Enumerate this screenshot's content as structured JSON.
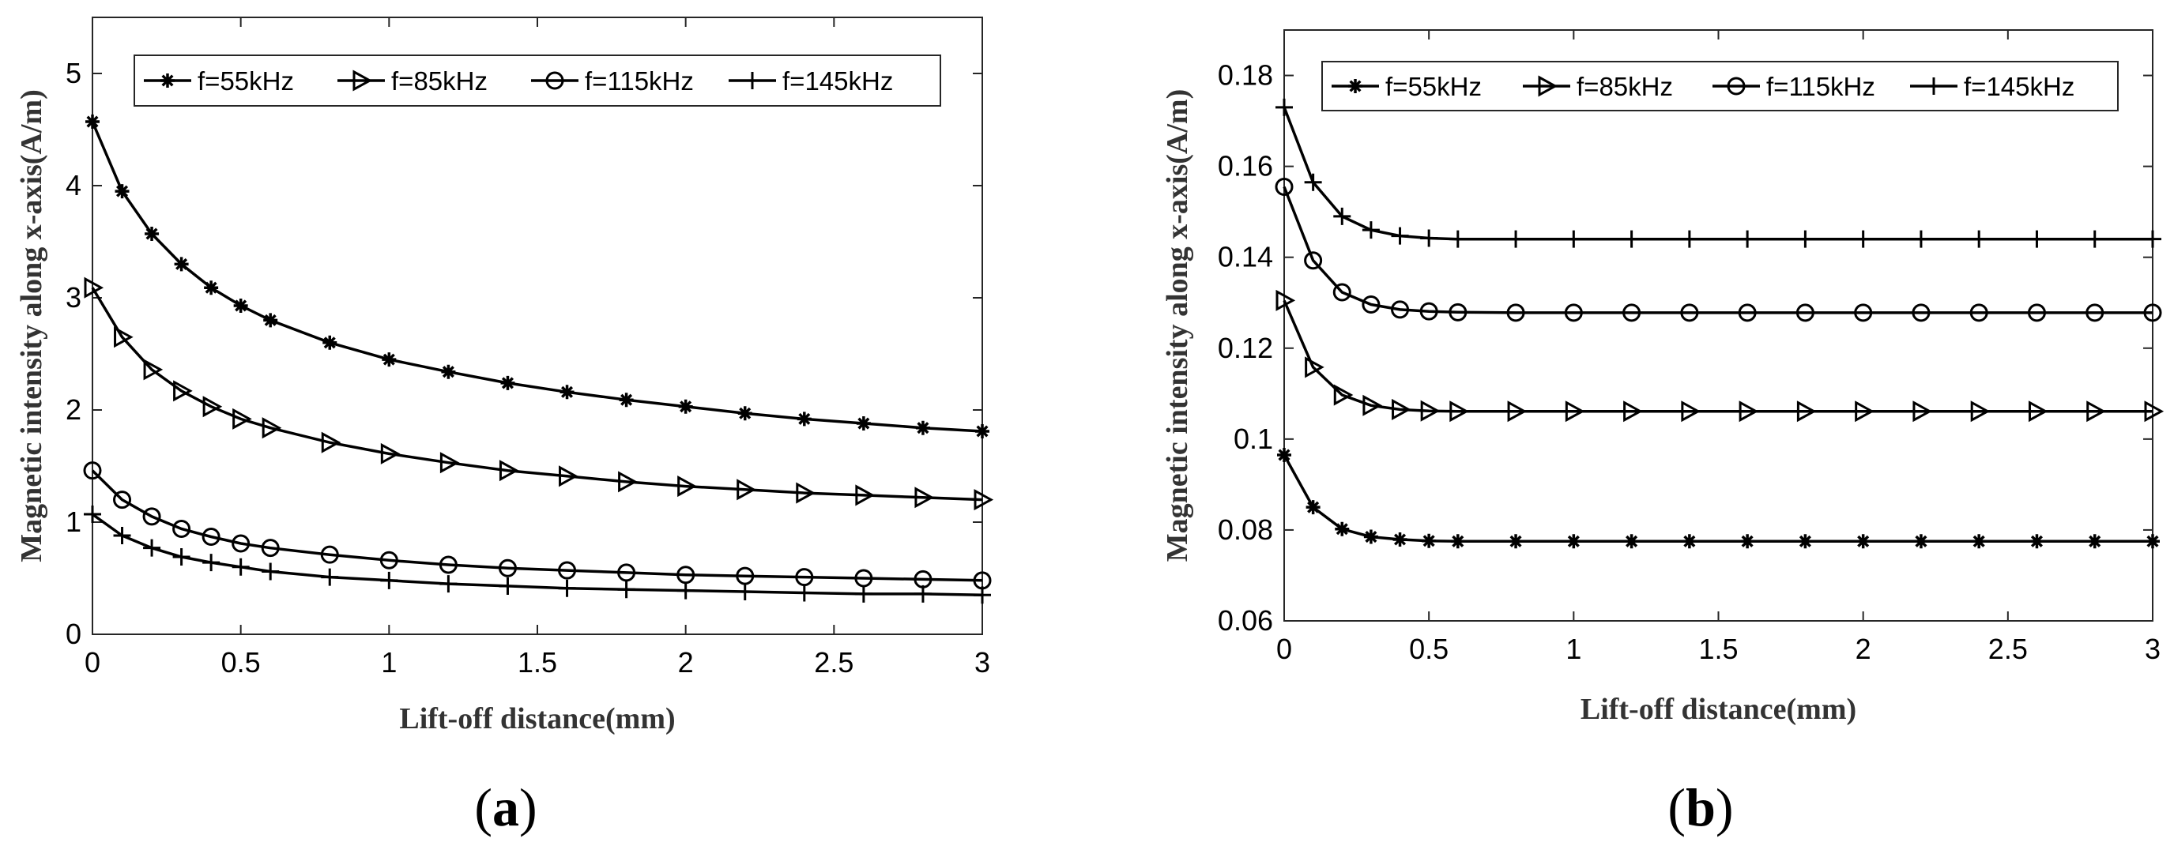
{
  "chart_data": [
    {
      "id": "a",
      "type": "line",
      "panel_label": {
        "open": "(",
        "letter": "a",
        "close": ")"
      },
      "xlabel": "Lift-off distance(mm)",
      "ylabel": "Magnetic intensity along x-axis(A/m)",
      "xlim": [
        0,
        3
      ],
      "ylim": [
        0,
        5.5
      ],
      "xticks": [
        0,
        0.5,
        1,
        1.5,
        2,
        2.5,
        3
      ],
      "xtick_labels": [
        "0",
        "0.5",
        "1",
        "1.5",
        "2",
        "2.5",
        "3"
      ],
      "yticks": [
        0,
        1,
        2,
        3,
        4,
        5
      ],
      "ytick_labels": [
        "0",
        "1",
        "2",
        "3",
        "4",
        "5"
      ],
      "x": [
        0,
        0.1,
        0.2,
        0.3,
        0.4,
        0.5,
        0.6,
        0.8,
        1.0,
        1.2,
        1.4,
        1.6,
        1.8,
        2.0,
        2.2,
        2.4,
        2.6,
        2.8,
        3.0
      ],
      "series": [
        {
          "name": "f=55kHz",
          "marker": "asterisk",
          "values": [
            4.57,
            3.95,
            3.57,
            3.3,
            3.09,
            2.93,
            2.8,
            2.6,
            2.45,
            2.34,
            2.24,
            2.16,
            2.09,
            2.03,
            1.97,
            1.92,
            1.88,
            1.84,
            1.81
          ]
        },
        {
          "name": "f=85kHz",
          "marker": "triangle-right",
          "values": [
            3.09,
            2.65,
            2.36,
            2.17,
            2.03,
            1.92,
            1.84,
            1.71,
            1.61,
            1.53,
            1.46,
            1.41,
            1.36,
            1.32,
            1.29,
            1.26,
            1.24,
            1.22,
            1.2
          ]
        },
        {
          "name": "f=115kHz",
          "marker": "circle",
          "values": [
            1.46,
            1.2,
            1.05,
            0.94,
            0.87,
            0.81,
            0.77,
            0.71,
            0.66,
            0.62,
            0.59,
            0.57,
            0.55,
            0.53,
            0.52,
            0.51,
            0.5,
            0.49,
            0.48
          ]
        },
        {
          "name": "f=145kHz",
          "marker": "plus",
          "values": [
            1.07,
            0.88,
            0.77,
            0.69,
            0.64,
            0.6,
            0.56,
            0.51,
            0.48,
            0.45,
            0.43,
            0.41,
            0.4,
            0.39,
            0.38,
            0.37,
            0.36,
            0.36,
            0.35
          ]
        }
      ]
    },
    {
      "id": "b",
      "type": "line",
      "panel_label": {
        "open": "(",
        "letter": "b",
        "close": ")"
      },
      "xlabel": "Lift-off distance(mm)",
      "ylabel": "Magnetic intensity along x-axis(A/m)",
      "xlim": [
        0,
        3
      ],
      "ylim": [
        0.06,
        0.19
      ],
      "xticks": [
        0,
        0.5,
        1,
        1.5,
        2,
        2.5,
        3
      ],
      "xtick_labels": [
        "0",
        "0.5",
        "1",
        "1.5",
        "2",
        "2.5",
        "3"
      ],
      "yticks": [
        0.06,
        0.08,
        0.1,
        0.12,
        0.14,
        0.16,
        0.18
      ],
      "ytick_labels": [
        "0.06",
        "0.08",
        "0.1",
        "0.12",
        "0.14",
        "0.16",
        "0.18"
      ],
      "x": [
        0,
        0.1,
        0.2,
        0.3,
        0.4,
        0.5,
        0.6,
        0.8,
        1.0,
        1.2,
        1.4,
        1.6,
        1.8,
        2.0,
        2.2,
        2.4,
        2.6,
        2.8,
        3.0
      ],
      "series": [
        {
          "name": "f=55kHz",
          "marker": "asterisk",
          "values": [
            0.0965,
            0.085,
            0.0802,
            0.0785,
            0.0779,
            0.0776,
            0.0775,
            0.0775,
            0.0775,
            0.0775,
            0.0775,
            0.0775,
            0.0775,
            0.0775,
            0.0775,
            0.0775,
            0.0775,
            0.0775,
            0.0775
          ]
        },
        {
          "name": "f=85kHz",
          "marker": "triangle-right",
          "values": [
            0.1305,
            0.1158,
            0.1097,
            0.1074,
            0.1065,
            0.1062,
            0.1061,
            0.1061,
            0.1061,
            0.1061,
            0.1061,
            0.1061,
            0.1061,
            0.1061,
            0.1061,
            0.1061,
            0.1061,
            0.1061,
            0.1061
          ]
        },
        {
          "name": "f=115kHz",
          "marker": "circle",
          "values": [
            0.1555,
            0.1393,
            0.1323,
            0.1296,
            0.1285,
            0.1281,
            0.1279,
            0.1278,
            0.1278,
            0.1278,
            0.1278,
            0.1278,
            0.1278,
            0.1278,
            0.1278,
            0.1278,
            0.1278,
            0.1278,
            0.1278
          ]
        },
        {
          "name": "f=145kHz",
          "marker": "plus",
          "values": [
            0.173,
            0.1565,
            0.149,
            0.146,
            0.1447,
            0.1442,
            0.144,
            0.144,
            0.144,
            0.144,
            0.144,
            0.144,
            0.144,
            0.144,
            0.144,
            0.144,
            0.144,
            0.144,
            0.144
          ]
        }
      ]
    }
  ]
}
